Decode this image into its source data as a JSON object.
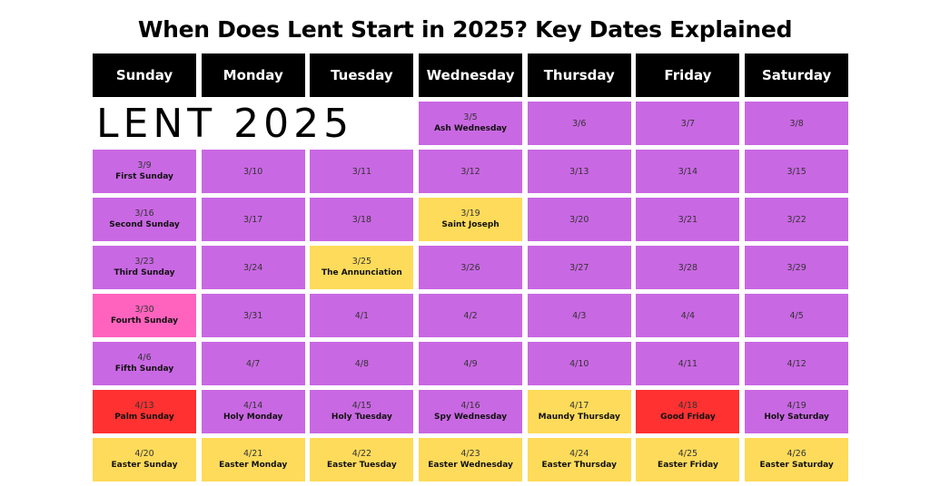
{
  "title": "When Does Lent Start in 2025? Key Dates Explained",
  "banner": "LENT 2025",
  "colors": {
    "header_bg": "#000000",
    "purple": "#c968e3",
    "yellow": "#fedb5a",
    "pink": "#ff63bd",
    "red": "#ff3131"
  },
  "days": [
    "Sunday",
    "Monday",
    "Tuesday",
    "Wednesday",
    "Thursday",
    "Friday",
    "Saturday"
  ],
  "weeks": [
    [
      {
        "date": "3/5",
        "label": "Ash Wednesday",
        "color": "purple",
        "col": 4
      },
      {
        "date": "3/6",
        "label": "",
        "color": "purple",
        "col": 5
      },
      {
        "date": "3/7",
        "label": "",
        "color": "purple",
        "col": 6
      },
      {
        "date": "3/8",
        "label": "",
        "color": "purple",
        "col": 7
      }
    ],
    [
      {
        "date": "3/9",
        "label": "First Sunday",
        "color": "purple"
      },
      {
        "date": "3/10",
        "label": "",
        "color": "purple"
      },
      {
        "date": "3/11",
        "label": "",
        "color": "purple"
      },
      {
        "date": "3/12",
        "label": "",
        "color": "purple"
      },
      {
        "date": "3/13",
        "label": "",
        "color": "purple"
      },
      {
        "date": "3/14",
        "label": "",
        "color": "purple"
      },
      {
        "date": "3/15",
        "label": "",
        "color": "purple"
      }
    ],
    [
      {
        "date": "3/16",
        "label": "Second Sunday",
        "color": "purple"
      },
      {
        "date": "3/17",
        "label": "",
        "color": "purple"
      },
      {
        "date": "3/18",
        "label": "",
        "color": "purple"
      },
      {
        "date": "3/19",
        "label": "Saint Joseph",
        "color": "yellow"
      },
      {
        "date": "3/20",
        "label": "",
        "color": "purple"
      },
      {
        "date": "3/21",
        "label": "",
        "color": "purple"
      },
      {
        "date": "3/22",
        "label": "",
        "color": "purple"
      }
    ],
    [
      {
        "date": "3/23",
        "label": "Third Sunday",
        "color": "purple"
      },
      {
        "date": "3/24",
        "label": "",
        "color": "purple"
      },
      {
        "date": "3/25",
        "label": "The Annunciation",
        "color": "yellow"
      },
      {
        "date": "3/26",
        "label": "",
        "color": "purple"
      },
      {
        "date": "3/27",
        "label": "",
        "color": "purple"
      },
      {
        "date": "3/28",
        "label": "",
        "color": "purple"
      },
      {
        "date": "3/29",
        "label": "",
        "color": "purple"
      }
    ],
    [
      {
        "date": "3/30",
        "label": "Fourth Sunday",
        "color": "pink"
      },
      {
        "date": "3/31",
        "label": "",
        "color": "purple"
      },
      {
        "date": "4/1",
        "label": "",
        "color": "purple"
      },
      {
        "date": "4/2",
        "label": "",
        "color": "purple"
      },
      {
        "date": "4/3",
        "label": "",
        "color": "purple"
      },
      {
        "date": "4/4",
        "label": "",
        "color": "purple"
      },
      {
        "date": "4/5",
        "label": "",
        "color": "purple"
      }
    ],
    [
      {
        "date": "4/6",
        "label": "Fifth Sunday",
        "color": "purple"
      },
      {
        "date": "4/7",
        "label": "",
        "color": "purple"
      },
      {
        "date": "4/8",
        "label": "",
        "color": "purple"
      },
      {
        "date": "4/9",
        "label": "",
        "color": "purple"
      },
      {
        "date": "4/10",
        "label": "",
        "color": "purple"
      },
      {
        "date": "4/11",
        "label": "",
        "color": "purple"
      },
      {
        "date": "4/12",
        "label": "",
        "color": "purple"
      }
    ],
    [
      {
        "date": "4/13",
        "label": "Palm Sunday",
        "color": "red"
      },
      {
        "date": "4/14",
        "label": "Holy Monday",
        "color": "purple"
      },
      {
        "date": "4/15",
        "label": "Holy Tuesday",
        "color": "purple"
      },
      {
        "date": "4/16",
        "label": "Spy Wednesday",
        "color": "purple"
      },
      {
        "date": "4/17",
        "label": "Maundy Thursday",
        "color": "yellow"
      },
      {
        "date": "4/18",
        "label": "Good Friday",
        "color": "red"
      },
      {
        "date": "4/19",
        "label": "Holy Saturday",
        "color": "purple"
      }
    ],
    [
      {
        "date": "4/20",
        "label": "Easter Sunday",
        "color": "yellow"
      },
      {
        "date": "4/21",
        "label": "Easter Monday",
        "color": "yellow"
      },
      {
        "date": "4/22",
        "label": "Easter Tuesday",
        "color": "yellow"
      },
      {
        "date": "4/23",
        "label": "Easter Wednesday",
        "color": "yellow"
      },
      {
        "date": "4/24",
        "label": "Easter Thursday",
        "color": "yellow"
      },
      {
        "date": "4/25",
        "label": "Easter Friday",
        "color": "yellow"
      },
      {
        "date": "4/26",
        "label": "Easter Saturday",
        "color": "yellow"
      }
    ]
  ]
}
